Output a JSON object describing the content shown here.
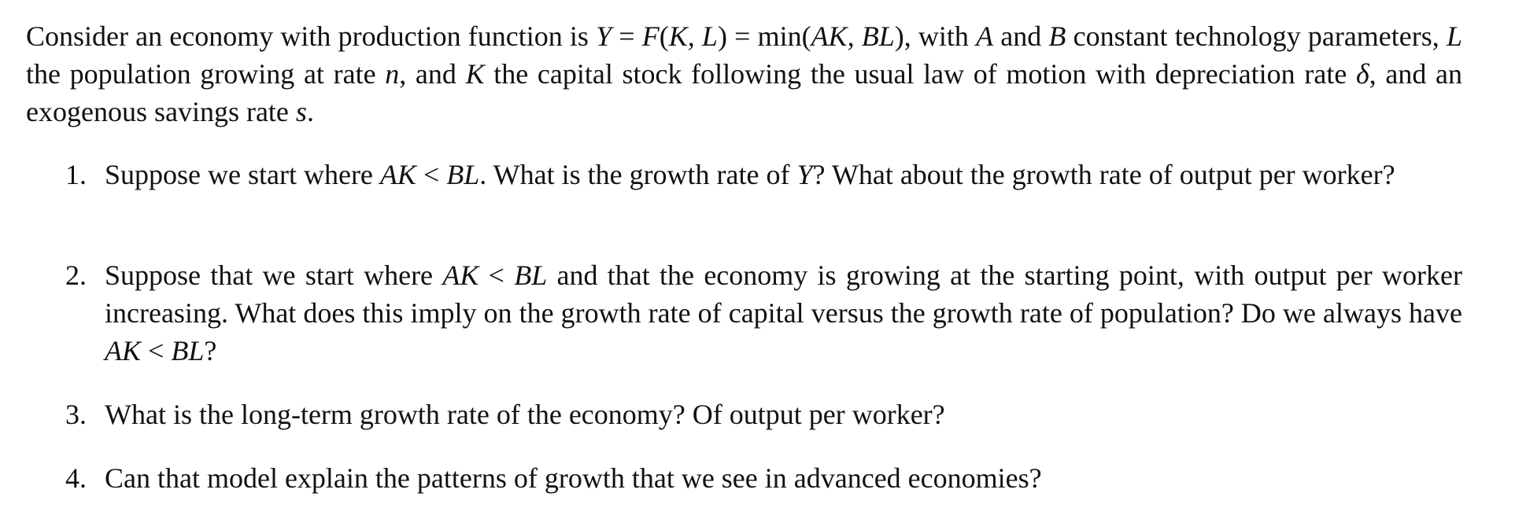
{
  "intro": [
    {
      "t": "Consider an economy with production function is "
    },
    {
      "t": "Y",
      "m": true
    },
    {
      "t": " = ",
      "op": true
    },
    {
      "t": "F",
      "m": true
    },
    {
      "t": "(",
      "op": true
    },
    {
      "t": "K, L",
      "m": true
    },
    {
      "t": ") = min(",
      "op": true
    },
    {
      "t": "AK, BL",
      "m": true
    },
    {
      "t": ")",
      "op": true
    },
    {
      "t": ", with "
    },
    {
      "t": "A",
      "m": true
    },
    {
      "t": " and "
    },
    {
      "t": "B",
      "m": true
    },
    {
      "t": " constant technology parameters, "
    },
    {
      "t": "L",
      "m": true
    },
    {
      "t": " the population growing at rate "
    },
    {
      "t": "n",
      "m": true
    },
    {
      "t": ", and "
    },
    {
      "t": "K",
      "m": true
    },
    {
      "t": " the capital stock following the usual law of motion with depreciation rate "
    },
    {
      "t": "δ",
      "m": true
    },
    {
      "t": ", and an exogenous savings rate "
    },
    {
      "t": "s",
      "m": true
    },
    {
      "t": "."
    }
  ],
  "questions": [
    {
      "number": "1.",
      "segments": [
        {
          "t": "Suppose we start where "
        },
        {
          "t": "AK",
          "m": true
        },
        {
          "t": " < ",
          "op": true
        },
        {
          "t": "BL",
          "m": true
        },
        {
          "t": ". What is the growth rate of "
        },
        {
          "t": "Y",
          "m": true
        },
        {
          "t": "? What about the growth rate of output per worker?"
        }
      ]
    },
    {
      "number": "2.",
      "segments": [
        {
          "t": "Suppose that we start where "
        },
        {
          "t": "AK",
          "m": true
        },
        {
          "t": " < ",
          "op": true
        },
        {
          "t": "BL",
          "m": true
        },
        {
          "t": " and that the economy is growing at the starting point, with output per worker increasing. What does this imply on the growth rate of capital versus the growth rate of population? Do we always have "
        },
        {
          "t": "AK",
          "m": true
        },
        {
          "t": " < ",
          "op": true
        },
        {
          "t": "BL",
          "m": true
        },
        {
          "t": "?"
        }
      ]
    },
    {
      "number": "3.",
      "segments": [
        {
          "t": "What is the long-term growth rate of the economy? Of output per worker?"
        }
      ]
    },
    {
      "number": "4.",
      "segments": [
        {
          "t": "Can that model explain the patterns of growth that we see in advanced economies?"
        }
      ]
    }
  ]
}
